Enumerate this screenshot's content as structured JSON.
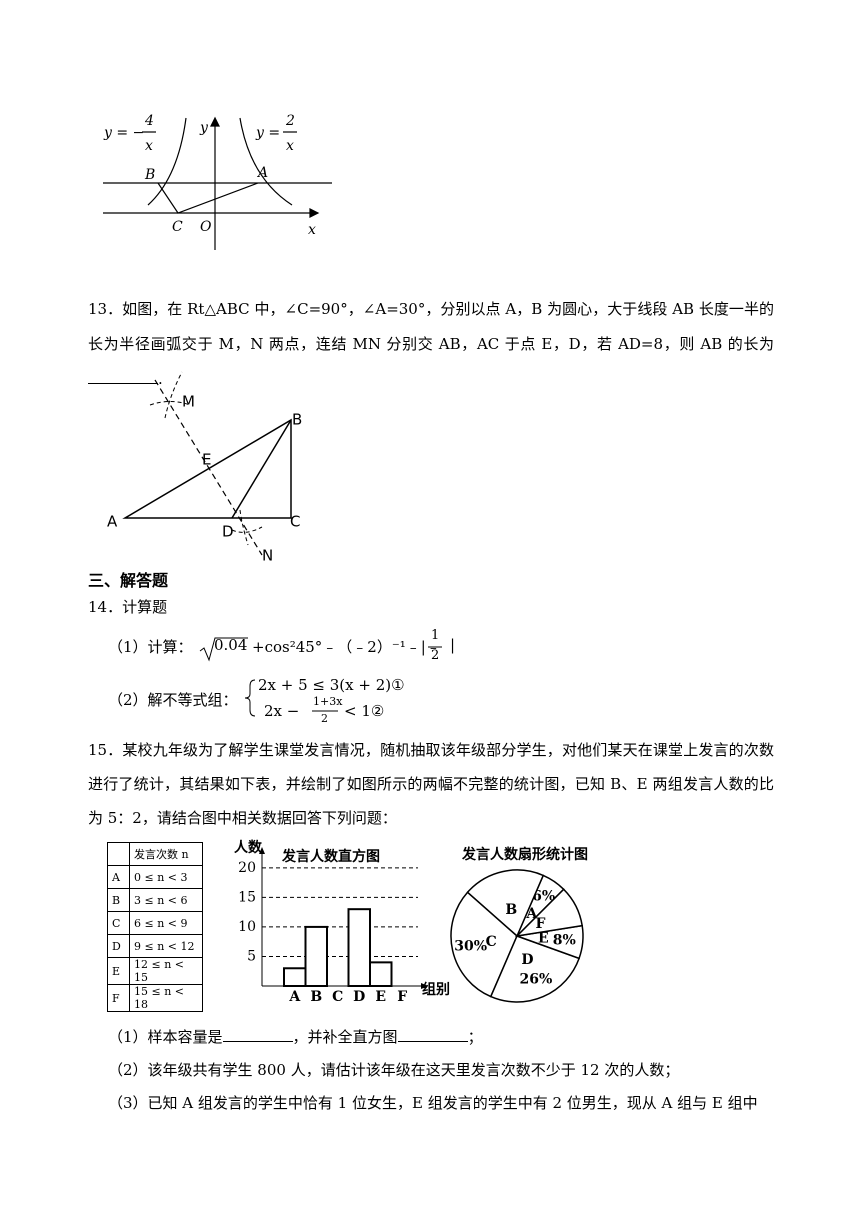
{
  "figure1": {
    "left_curve": "y = −",
    "left_numerator": "4",
    "left_denominator": "x",
    "y_axis": "y",
    "right_curve": "y =",
    "right_numerator": "2",
    "right_denominator": "x",
    "points": [
      "B",
      "A",
      "C",
      "O"
    ],
    "x_axis": "x"
  },
  "question13": {
    "text": "13．如图，在 Rt△ABC 中，∠C=90°，∠A=30°，分别以点 A，B 为圆心，大于线段 AB 长度一半的长为半径画弧交于 M，N 两点，连结 MN 分别交 AB，AC 于点 E，D，若 AD=8，则 AB 的长为",
    "end": "."
  },
  "figure2": {
    "points": [
      "M",
      "B",
      "E",
      "A",
      "D",
      "C",
      "N"
    ]
  },
  "section": "三、解答题",
  "question14": {
    "title": "14．计算题",
    "part1": {
      "label": "（1）计算：",
      "radicand": "0.04",
      "expression": "+cos²45°﹣（﹣2）⁻¹﹣|﹣",
      "numerator": "1",
      "denominator": "2",
      "end": "|"
    },
    "part2": {
      "label": "（2）解不等式组：",
      "line1": "2x + 5 ≤ 3(x + 2)①",
      "line2_start": "2x −",
      "numerator": "1+3x",
      "denominator": "2",
      "line2_end": "< 1②"
    }
  },
  "question15": {
    "text": "15．某校九年级为了解学生课堂发言情况，随机抽取该年级部分学生，对他们某天在课堂上发言的次数进行了统计，其结果如下表，并绘制了如图所示的两幅不完整的统计图，已知 B、E 两组发言人数的比为 5：2，请结合图中相关数据回答下列问题：",
    "table": {
      "header": "发言次数 n",
      "rows": [
        [
          "A",
          "0 ≤ n < 3"
        ],
        [
          "B",
          "3 ≤ n < 6"
        ],
        [
          "C",
          "6 ≤ n < 9"
        ],
        [
          "D",
          "9 ≤ n < 12"
        ],
        [
          "E",
          "12 ≤ n < 15"
        ],
        [
          "F",
          "15 ≤ n < 18"
        ]
      ]
    },
    "histogram": {
      "title": "发言人数直方图",
      "y_label": "人数",
      "x_label": "组别",
      "categories": [
        "A",
        "B",
        "C",
        "D",
        "E",
        "F"
      ],
      "values": [
        3,
        10,
        null,
        13,
        4,
        null
      ],
      "ylim": [
        0,
        22
      ],
      "yticks": [
        5,
        10,
        15,
        20
      ]
    },
    "pie": {
      "title": "发言人数扇形统计图",
      "categories": [
        "A",
        "B",
        "C",
        "D",
        "E",
        "F"
      ],
      "values": [
        6,
        20,
        30,
        26,
        8,
        10
      ],
      "value_labels": [
        "6%",
        null,
        "30%",
        "26%",
        "8%",
        null
      ]
    },
    "part1": [
      "（1）样本容量是",
      "，并补全直方图",
      "；"
    ],
    "part2": "（2）该年级共有学生 800 人，请估计该年级在这天里发言次数不少于 12 次的人数；",
    "part3": "（3）已知 A 组发言的学生中恰有 1 位女生，E 组发言的学生中有 2 位男生，现从 A 组与 E 组中"
  }
}
